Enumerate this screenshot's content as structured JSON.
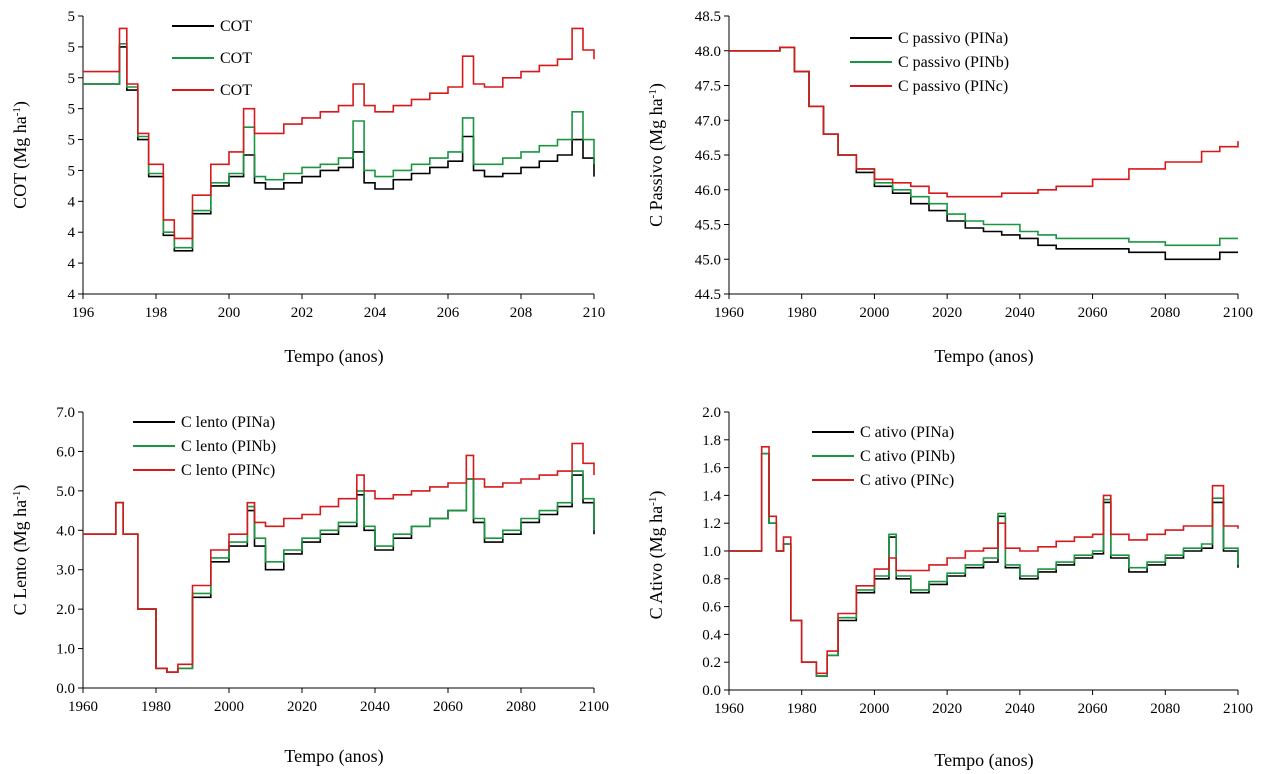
{
  "chart_data": [
    {
      "type": "line",
      "ylabel": "COT (Mg ha-1)",
      "xlabel": "Tempo (anos)",
      "x_tick_labels": [
        "196",
        "198",
        "200",
        "202",
        "204",
        "206",
        "208",
        "210"
      ],
      "y_tick_labels": [
        "4",
        "4",
        "4",
        "4",
        "5",
        "5",
        "5",
        "5",
        "5",
        "5"
      ],
      "xlim": [
        1960,
        2100
      ],
      "ylim": [
        0,
        9
      ],
      "grid": false,
      "legend_position": "top-left",
      "series": [
        {
          "name": "COT",
          "color": "#000000",
          "x": [
            1960,
            1968,
            1970,
            1972,
            1975,
            1978,
            1982,
            1985,
            1990,
            1995,
            2000,
            2004,
            2007,
            2010,
            2015,
            2020,
            2025,
            2030,
            2034,
            2037,
            2040,
            2045,
            2050,
            2055,
            2060,
            2064,
            2067,
            2070,
            2075,
            2080,
            2085,
            2090,
            2094,
            2097,
            2100
          ],
          "y": [
            6.8,
            6.8,
            8.0,
            6.6,
            5.0,
            3.8,
            1.9,
            1.4,
            2.6,
            3.5,
            3.8,
            4.5,
            3.6,
            3.4,
            3.6,
            3.8,
            4.0,
            4.1,
            4.6,
            3.6,
            3.4,
            3.7,
            3.9,
            4.1,
            4.3,
            5.1,
            4.0,
            3.8,
            3.9,
            4.1,
            4.3,
            4.5,
            5.0,
            4.4,
            3.8
          ]
        },
        {
          "name": "COT",
          "color": "#1a9641",
          "x": [
            1960,
            1968,
            1970,
            1972,
            1975,
            1978,
            1982,
            1985,
            1990,
            1995,
            2000,
            2004,
            2007,
            2010,
            2015,
            2020,
            2025,
            2030,
            2034,
            2037,
            2040,
            2045,
            2050,
            2055,
            2060,
            2064,
            2067,
            2070,
            2075,
            2080,
            2085,
            2090,
            2094,
            2097,
            2100
          ],
          "y": [
            6.8,
            6.8,
            8.1,
            6.7,
            5.1,
            3.9,
            2.0,
            1.5,
            2.7,
            3.6,
            3.9,
            5.4,
            3.8,
            3.7,
            3.9,
            4.1,
            4.2,
            4.4,
            5.6,
            4.0,
            3.8,
            4.0,
            4.2,
            4.4,
            4.6,
            5.7,
            4.2,
            4.2,
            4.4,
            4.6,
            4.8,
            5.0,
            5.9,
            5.0,
            4.2
          ]
        },
        {
          "name": "COT",
          "color": "#d7191c",
          "x": [
            1960,
            1968,
            1970,
            1972,
            1975,
            1978,
            1982,
            1985,
            1990,
            1995,
            2000,
            2004,
            2007,
            2010,
            2015,
            2020,
            2025,
            2030,
            2034,
            2037,
            2040,
            2045,
            2050,
            2055,
            2060,
            2064,
            2067,
            2070,
            2075,
            2080,
            2085,
            2090,
            2094,
            2097,
            2100
          ],
          "y": [
            7.2,
            7.2,
            8.6,
            6.8,
            5.2,
            4.2,
            2.4,
            1.8,
            3.2,
            4.2,
            4.6,
            6.0,
            5.2,
            5.2,
            5.5,
            5.7,
            5.9,
            6.1,
            6.8,
            6.1,
            5.9,
            6.1,
            6.3,
            6.5,
            6.7,
            7.7,
            6.8,
            6.7,
            7.0,
            7.2,
            7.4,
            7.6,
            8.6,
            7.9,
            7.6
          ]
        }
      ]
    },
    {
      "type": "line",
      "ylabel": "C Passivo (Mg ha-1)",
      "xlabel": "Tempo (anos)",
      "x_tick_labels": [
        "1960",
        "1980",
        "2000",
        "2020",
        "2040",
        "2060",
        "2080",
        "2100"
      ],
      "y_tick_labels": [
        "44.5",
        "45.0",
        "45.5",
        "46.0",
        "46.5",
        "47.0",
        "47.5",
        "48.0",
        "48.5"
      ],
      "xlim": [
        1960,
        2100
      ],
      "ylim": [
        44.5,
        48.5
      ],
      "grid": false,
      "legend_position": "top-center",
      "series": [
        {
          "name": "C passivo (PINa)",
          "color": "#000000",
          "x": [
            1960,
            1970,
            1974,
            1978,
            1982,
            1986,
            1990,
            1995,
            2000,
            2005,
            2010,
            2015,
            2020,
            2025,
            2030,
            2035,
            2040,
            2045,
            2050,
            2060,
            2070,
            2080,
            2090,
            2095,
            2100
          ],
          "y": [
            48.0,
            48.0,
            48.05,
            47.7,
            47.2,
            46.8,
            46.5,
            46.25,
            46.05,
            45.95,
            45.8,
            45.7,
            45.55,
            45.45,
            45.4,
            45.35,
            45.3,
            45.2,
            45.15,
            45.15,
            45.1,
            45.0,
            45.0,
            45.1,
            45.1
          ]
        },
        {
          "name": "C passivo (PINb)",
          "color": "#1a9641",
          "x": [
            1960,
            1970,
            1974,
            1978,
            1982,
            1986,
            1990,
            1995,
            2000,
            2005,
            2010,
            2015,
            2020,
            2025,
            2030,
            2035,
            2040,
            2045,
            2050,
            2060,
            2070,
            2080,
            2090,
            2095,
            2100
          ],
          "y": [
            48.0,
            48.0,
            48.05,
            47.7,
            47.2,
            46.8,
            46.5,
            46.3,
            46.1,
            46.0,
            45.9,
            45.8,
            45.65,
            45.55,
            45.5,
            45.5,
            45.4,
            45.35,
            45.3,
            45.3,
            45.25,
            45.2,
            45.2,
            45.3,
            45.3
          ]
        },
        {
          "name": "C passivo (PINc)",
          "color": "#d7191c",
          "x": [
            1960,
            1970,
            1974,
            1978,
            1982,
            1986,
            1990,
            1995,
            2000,
            2005,
            2010,
            2015,
            2020,
            2025,
            2030,
            2035,
            2040,
            2045,
            2050,
            2060,
            2070,
            2080,
            2090,
            2095,
            2100
          ],
          "y": [
            48.0,
            48.0,
            48.05,
            47.7,
            47.2,
            46.8,
            46.5,
            46.3,
            46.15,
            46.1,
            46.05,
            45.95,
            45.9,
            45.9,
            45.9,
            45.95,
            45.95,
            46.0,
            46.05,
            46.15,
            46.3,
            46.4,
            46.55,
            46.62,
            46.7
          ]
        }
      ]
    },
    {
      "type": "line",
      "ylabel": "C Lento (Mg ha-1)",
      "xlabel": "Tempo (anos)",
      "x_tick_labels": [
        "1960",
        "1980",
        "2000",
        "2020",
        "2040",
        "2060",
        "2080",
        "2100"
      ],
      "y_tick_labels": [
        "0.0",
        "1.0",
        "2.0",
        "3.0",
        "4.0",
        "5.0",
        "6.0",
        "7.0"
      ],
      "xlim": [
        1960,
        2100
      ],
      "ylim": [
        0,
        7
      ],
      "grid": false,
      "legend_position": "top-left",
      "series": [
        {
          "name": "C lento (PINa)",
          "color": "#000000",
          "x": [
            1960,
            1967,
            1969,
            1971,
            1975,
            1980,
            1983,
            1986,
            1990,
            1995,
            2000,
            2005,
            2007,
            2010,
            2015,
            2020,
            2025,
            2030,
            2035,
            2037,
            2040,
            2045,
            2050,
            2055,
            2060,
            2065,
            2067,
            2070,
            2075,
            2080,
            2085,
            2090,
            2094,
            2097,
            2100
          ],
          "y": [
            3.9,
            3.9,
            4.7,
            3.9,
            2.0,
            0.5,
            0.4,
            0.5,
            2.3,
            3.2,
            3.6,
            4.5,
            3.6,
            3.0,
            3.4,
            3.7,
            3.9,
            4.1,
            4.9,
            4.0,
            3.5,
            3.8,
            4.1,
            4.3,
            4.5,
            5.3,
            4.2,
            3.7,
            3.9,
            4.2,
            4.4,
            4.6,
            5.4,
            4.7,
            3.9
          ]
        },
        {
          "name": "C lento (PINb)",
          "color": "#1a9641",
          "x": [
            1960,
            1967,
            1969,
            1971,
            1975,
            1980,
            1983,
            1986,
            1990,
            1995,
            2000,
            2005,
            2007,
            2010,
            2015,
            2020,
            2025,
            2030,
            2035,
            2037,
            2040,
            2045,
            2050,
            2055,
            2060,
            2065,
            2067,
            2070,
            2075,
            2080,
            2085,
            2090,
            2094,
            2097,
            2100
          ],
          "y": [
            3.9,
            3.9,
            4.7,
            3.9,
            2.0,
            0.5,
            0.4,
            0.5,
            2.4,
            3.3,
            3.7,
            4.6,
            3.8,
            3.2,
            3.5,
            3.8,
            4.0,
            4.2,
            5.0,
            4.1,
            3.6,
            3.9,
            4.1,
            4.3,
            4.5,
            5.3,
            4.3,
            3.8,
            4.0,
            4.3,
            4.5,
            4.7,
            5.5,
            4.8,
            4.0
          ]
        },
        {
          "name": "C lento (PINc)",
          "color": "#d7191c",
          "x": [
            1960,
            1967,
            1969,
            1971,
            1975,
            1980,
            1983,
            1986,
            1990,
            1995,
            2000,
            2005,
            2007,
            2010,
            2015,
            2020,
            2025,
            2030,
            2035,
            2037,
            2040,
            2045,
            2050,
            2055,
            2060,
            2065,
            2067,
            2070,
            2075,
            2080,
            2085,
            2090,
            2094,
            2097,
            2100
          ],
          "y": [
            3.9,
            3.9,
            4.7,
            3.9,
            2.0,
            0.5,
            0.4,
            0.6,
            2.6,
            3.5,
            3.9,
            4.7,
            4.2,
            4.1,
            4.3,
            4.4,
            4.6,
            4.8,
            5.4,
            5.0,
            4.8,
            4.9,
            5.0,
            5.1,
            5.2,
            5.9,
            5.3,
            5.1,
            5.2,
            5.3,
            5.4,
            5.5,
            6.2,
            5.7,
            5.4
          ]
        }
      ]
    },
    {
      "type": "line",
      "ylabel": "C Ativo (Mg ha-1)",
      "xlabel": "Tempo (anos)",
      "x_tick_labels": [
        "1960",
        "1980",
        "2000",
        "2020",
        "2040",
        "2060",
        "2080",
        "2100"
      ],
      "y_tick_labels": [
        "0.0",
        "0.2",
        "0.4",
        "0.6",
        "0.8",
        "1.0",
        "1.2",
        "1.4",
        "1.6",
        "1.8",
        "2.0"
      ],
      "xlim": [
        1960,
        2100
      ],
      "ylim": [
        0,
        2
      ],
      "grid": false,
      "legend_position": "top-left",
      "series": [
        {
          "name": "C ativo (PINa)",
          "color": "#000000",
          "x": [
            1960,
            1968,
            1969,
            1971,
            1973,
            1975,
            1977,
            1980,
            1984,
            1987,
            1990,
            1995,
            2000,
            2004,
            2006,
            2010,
            2015,
            2020,
            2025,
            2030,
            2034,
            2036,
            2040,
            2045,
            2050,
            2055,
            2060,
            2063,
            2065,
            2070,
            2075,
            2080,
            2085,
            2090,
            2093,
            2096,
            2100
          ],
          "y": [
            1.0,
            1.0,
            1.7,
            1.2,
            1.0,
            1.05,
            0.5,
            0.2,
            0.1,
            0.25,
            0.5,
            0.7,
            0.8,
            1.1,
            0.8,
            0.7,
            0.76,
            0.82,
            0.88,
            0.92,
            1.25,
            0.88,
            0.8,
            0.85,
            0.9,
            0.95,
            0.98,
            1.35,
            0.95,
            0.85,
            0.9,
            0.95,
            1.0,
            1.02,
            1.35,
            1.0,
            0.88
          ]
        },
        {
          "name": "C ativo (PINb)",
          "color": "#1a9641",
          "x": [
            1960,
            1968,
            1969,
            1971,
            1973,
            1975,
            1977,
            1980,
            1984,
            1987,
            1990,
            1995,
            2000,
            2004,
            2006,
            2010,
            2015,
            2020,
            2025,
            2030,
            2034,
            2036,
            2040,
            2045,
            2050,
            2055,
            2060,
            2063,
            2065,
            2070,
            2075,
            2080,
            2085,
            2090,
            2093,
            2096,
            2100
          ],
          "y": [
            1.0,
            1.0,
            1.7,
            1.2,
            1.0,
            1.05,
            0.5,
            0.2,
            0.1,
            0.25,
            0.52,
            0.72,
            0.82,
            1.12,
            0.82,
            0.72,
            0.78,
            0.84,
            0.9,
            0.95,
            1.27,
            0.9,
            0.82,
            0.87,
            0.92,
            0.97,
            1.0,
            1.37,
            0.97,
            0.88,
            0.92,
            0.97,
            1.02,
            1.05,
            1.38,
            1.02,
            0.9
          ]
        },
        {
          "name": "C ativo (PINc)",
          "color": "#d7191c",
          "x": [
            1960,
            1968,
            1969,
            1971,
            1973,
            1975,
            1977,
            1980,
            1984,
            1987,
            1990,
            1995,
            2000,
            2004,
            2006,
            2010,
            2015,
            2020,
            2025,
            2030,
            2034,
            2036,
            2040,
            2045,
            2050,
            2055,
            2060,
            2063,
            2065,
            2070,
            2075,
            2080,
            2085,
            2090,
            2093,
            2096,
            2100
          ],
          "y": [
            1.0,
            1.0,
            1.75,
            1.25,
            1.0,
            1.1,
            0.5,
            0.2,
            0.12,
            0.28,
            0.55,
            0.75,
            0.87,
            0.95,
            0.86,
            0.86,
            0.9,
            0.95,
            1.0,
            1.02,
            1.2,
            1.02,
            1.0,
            1.03,
            1.07,
            1.1,
            1.12,
            1.4,
            1.12,
            1.08,
            1.12,
            1.15,
            1.18,
            1.18,
            1.47,
            1.18,
            1.16
          ]
        }
      ]
    }
  ]
}
